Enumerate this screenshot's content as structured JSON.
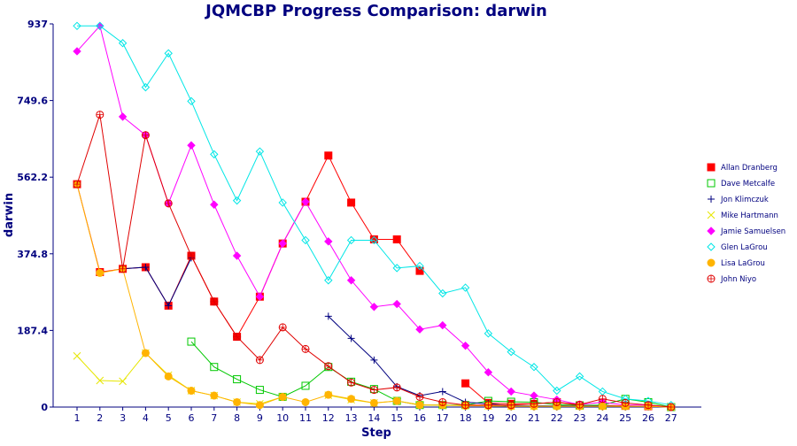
{
  "chart_data": {
    "type": "line",
    "title": "JQMCBP Progress Comparison: darwin",
    "xlabel": "Step",
    "ylabel": "darwin",
    "ylim": [
      0,
      937
    ],
    "yticks": [
      "0",
      "187.4",
      "374.8",
      "562.2",
      "749.6",
      "937"
    ],
    "x": [
      1,
      2,
      3,
      4,
      5,
      6,
      7,
      8,
      9,
      10,
      11,
      12,
      13,
      14,
      15,
      16,
      17,
      18,
      19,
      20,
      21,
      22,
      23,
      24,
      25,
      26,
      27
    ],
    "legend_position": "right",
    "grid": false,
    "series": [
      {
        "name": "Allan Dranberg",
        "color": "#ff0000",
        "marker": "square-filled",
        "values": [
          545,
          330,
          338,
          342,
          248,
          370,
          258,
          172,
          270,
          400,
          502,
          615,
          500,
          410,
          410,
          333,
          null,
          58,
          10,
          8,
          8,
          12,
          4,
          4,
          3,
          2,
          0
        ]
      },
      {
        "name": "Dave Metcalfe",
        "color": "#00c800",
        "marker": "square-open",
        "values": [
          null,
          null,
          null,
          null,
          null,
          160,
          98,
          68,
          42,
          25,
          52,
          98,
          62,
          44,
          15,
          5,
          5,
          5,
          15,
          13,
          12,
          6,
          4,
          5,
          20,
          12,
          0
        ]
      },
      {
        "name": "Jon Klimczuk",
        "color": "#00007f",
        "marker": "plus",
        "values": [
          null,
          null,
          338,
          342,
          248,
          365,
          null,
          null,
          null,
          null,
          null,
          222,
          168,
          115,
          50,
          28,
          38,
          12,
          8,
          3,
          3,
          3,
          3,
          3,
          2,
          2,
          0
        ]
      },
      {
        "name": "Mike Hartmann",
        "color": "#e6e600",
        "marker": "x",
        "values": [
          125,
          65,
          63,
          132,
          78,
          40,
          28,
          12,
          8,
          25,
          null,
          29,
          18,
          10,
          15,
          6,
          4,
          4,
          3,
          2,
          2,
          2,
          2,
          2,
          2,
          2,
          0
        ]
      },
      {
        "name": "Jamie Samuelsen",
        "color": "#ff00ff",
        "marker": "diamond-filled",
        "values": [
          870,
          932,
          710,
          665,
          498,
          640,
          495,
          370,
          270,
          400,
          502,
          405,
          310,
          245,
          252,
          190,
          200,
          150,
          85,
          38,
          28,
          18,
          6,
          12,
          5,
          5,
          0
        ]
      },
      {
        "name": "Glen  LaGrou",
        "color": "#00e6e6",
        "marker": "diamond-open",
        "values": [
          932,
          932,
          890,
          782,
          865,
          748,
          618,
          505,
          625,
          500,
          408,
          310,
          408,
          408,
          340,
          345,
          278,
          292,
          180,
          135,
          98,
          40,
          75,
          38,
          20,
          15,
          5
        ]
      },
      {
        "name": "Lisa LaGrou",
        "color": "#ffb400",
        "marker": "circle-filled",
        "values": [
          545,
          328,
          338,
          132,
          75,
          40,
          28,
          12,
          5,
          25,
          12,
          30,
          20,
          10,
          15,
          5,
          5,
          3,
          3,
          2,
          2,
          2,
          2,
          2,
          2,
          2,
          0
        ]
      },
      {
        "name": "John Niyo",
        "color": "#e00000",
        "marker": "circle-open",
        "values": [
          545,
          715,
          338,
          665,
          498,
          370,
          258,
          172,
          115,
          195,
          142,
          100,
          60,
          42,
          48,
          25,
          12,
          5,
          5,
          5,
          8,
          12,
          6,
          20,
          10,
          5,
          0
        ]
      }
    ]
  }
}
